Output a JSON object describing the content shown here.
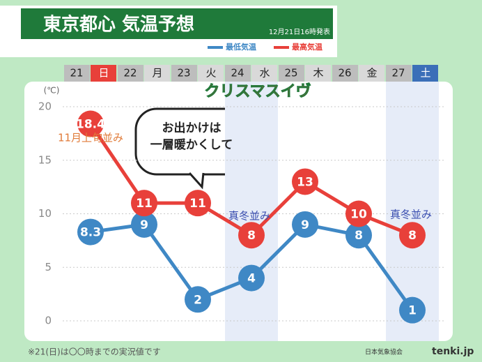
{
  "chart_data": {
    "type": "line",
    "title": "東京都心 気温予想",
    "issued": "12月21日16時発表",
    "categories": [
      "21",
      "22",
      "23",
      "24",
      "25",
      "26",
      "27"
    ],
    "weekdays": [
      "日",
      "月",
      "火",
      "水",
      "木",
      "金",
      "土"
    ],
    "y_unit": "(℃)",
    "ylim": [
      0,
      20
    ],
    "yticks": [
      0,
      5,
      10,
      15,
      20
    ],
    "series": [
      {
        "name": "最低気温",
        "color": "#3f88c5",
        "values": [
          8.3,
          9,
          2,
          4,
          9,
          8,
          1
        ]
      },
      {
        "name": "最高気温",
        "color": "#e8403a",
        "values": [
          18.4,
          11,
          11,
          8,
          13,
          10,
          8
        ]
      }
    ],
    "annotations": [
      "クリスマスイヴ",
      "11月上旬並み",
      "お出かけは",
      "一層暖かくして",
      "真冬並み",
      "真冬並み"
    ]
  },
  "footnote": "※21(日)は〇〇時までの実況値です",
  "credit": "日本気象協会",
  "brand": "tenki.jp"
}
